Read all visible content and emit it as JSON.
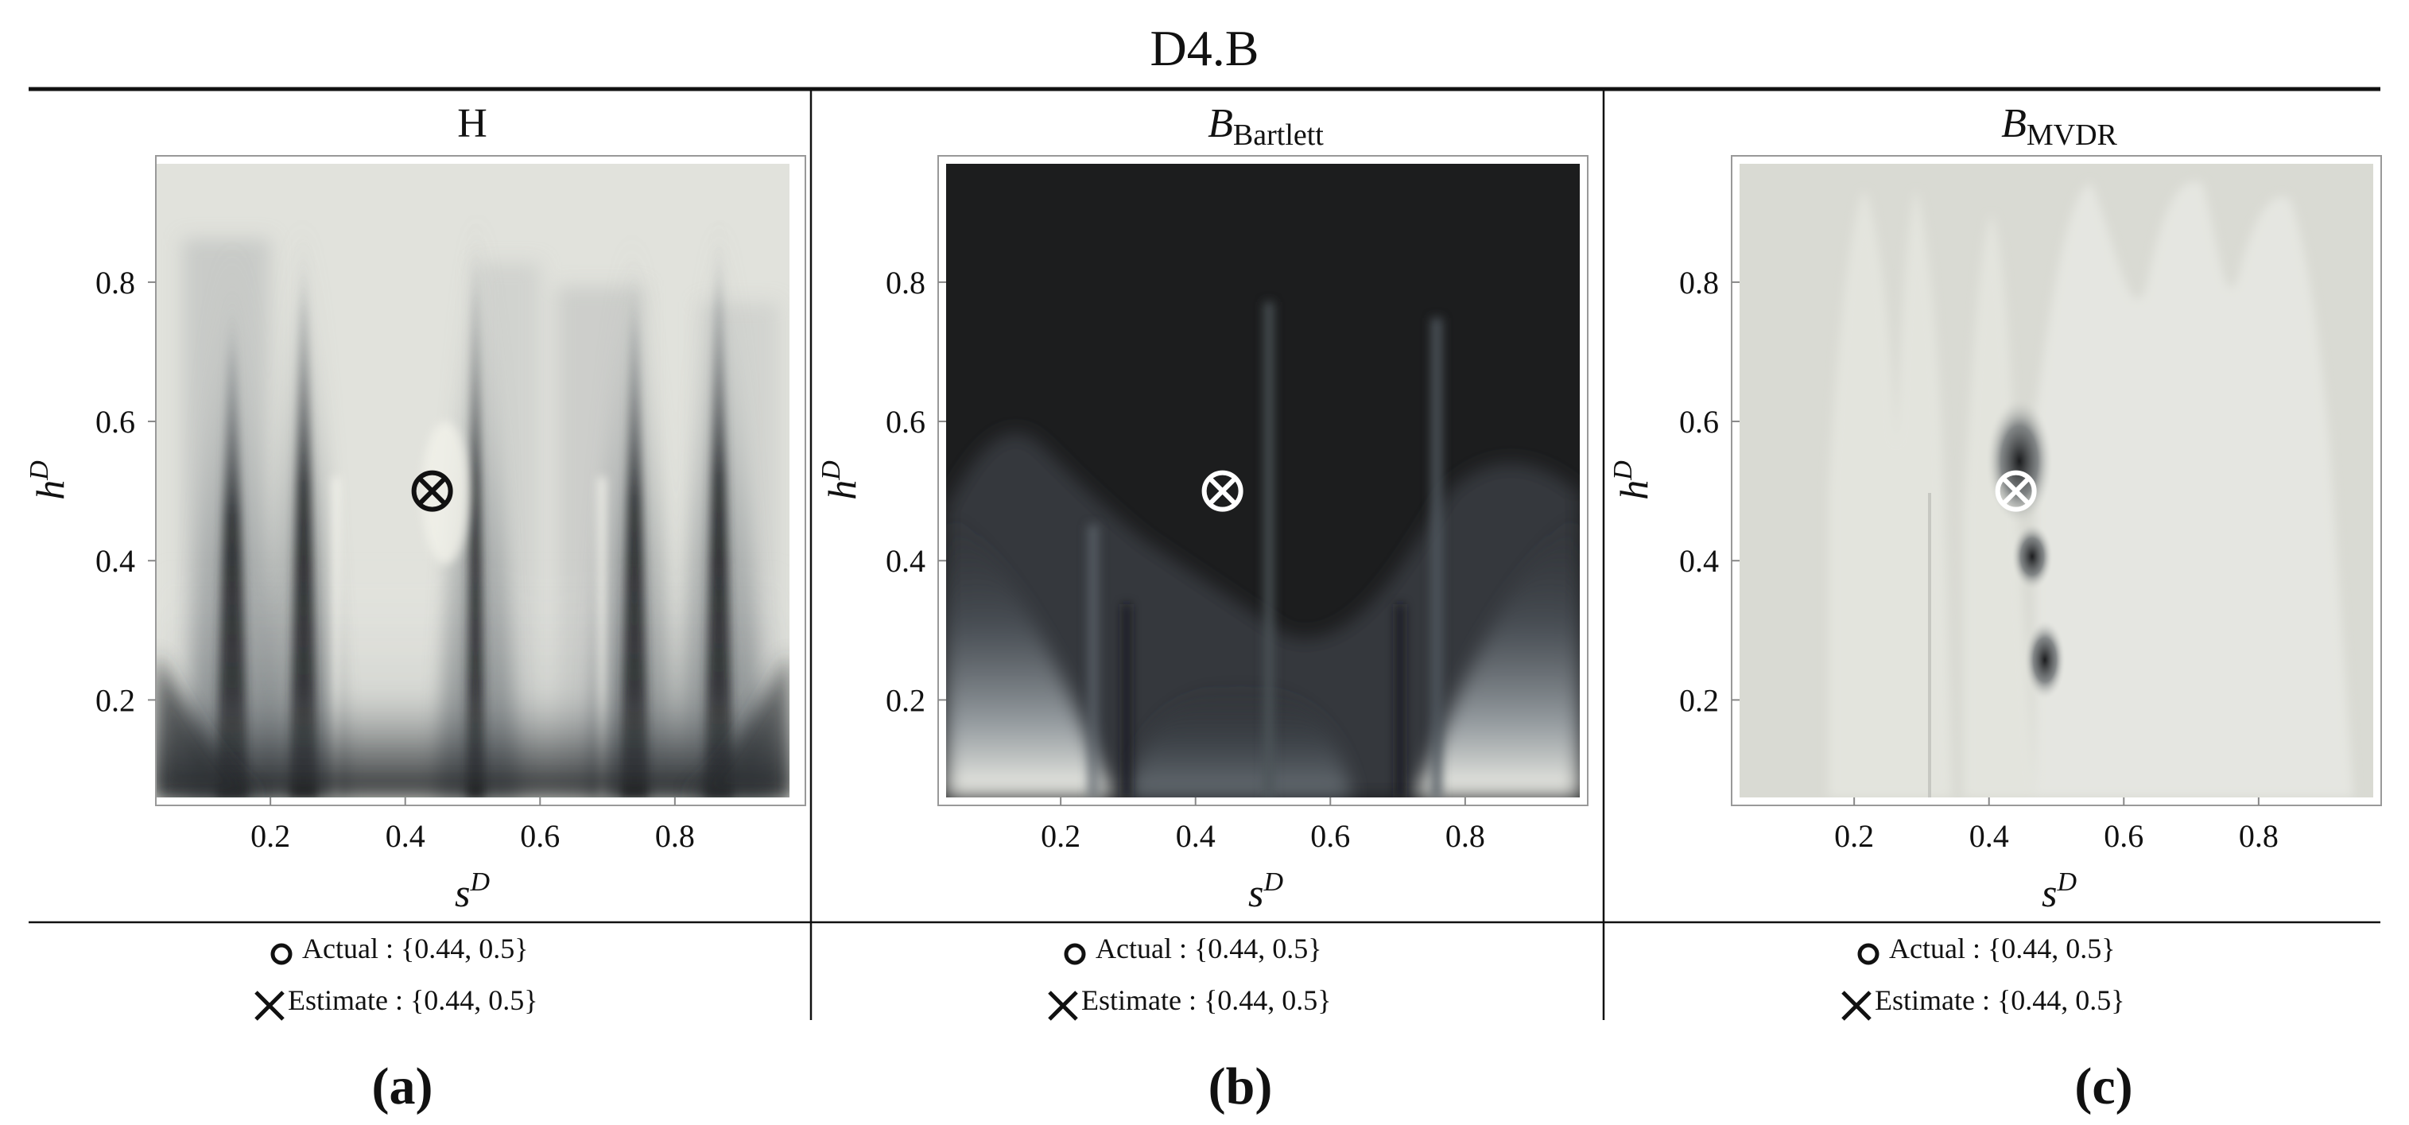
{
  "figure": {
    "title": "D4.B",
    "panel_letters": [
      "(a)",
      "(b)",
      "(c)"
    ]
  },
  "colors": {
    "light": "#e2e3dd",
    "dark": "#1c1d1e",
    "mid": "#8c9296",
    "line": "#111111",
    "marker_dark": "#111111",
    "marker_light": "#ffffff"
  },
  "chart_data": [
    {
      "type": "heatmap",
      "title_main": "H",
      "title_sub": "",
      "xlabel_main": "s",
      "xlabel_sup": "D",
      "ylabel_main": "h",
      "ylabel_sup": "D",
      "xlim": [
        0.03,
        0.97
      ],
      "ylim": [
        0.06,
        0.97
      ],
      "xticks": [
        0.2,
        0.4,
        0.6,
        0.8
      ],
      "yticks": [
        0.2,
        0.4,
        0.6,
        0.8
      ],
      "xtick_labels": [
        "0.2",
        "0.4",
        "0.6",
        "0.8"
      ],
      "ytick_labels": [
        "0.2",
        "0.4",
        "0.6",
        "0.8"
      ],
      "background": "light",
      "dark_features_s": [
        0.12,
        0.25,
        0.5,
        0.73,
        0.85
      ],
      "actual": {
        "s": 0.44,
        "h": 0.5
      },
      "estimate": {
        "s": 0.44,
        "h": 0.5
      },
      "marker_color": "marker_dark",
      "legend": {
        "actual_label": "Actual",
        "actual_value": "{0.44, 0.5}",
        "estimate_label": "Estimate",
        "estimate_value": "{0.44, 0.5}"
      }
    },
    {
      "type": "heatmap",
      "title_main": "B",
      "title_sub": "Bartlett",
      "xlabel_main": "s",
      "xlabel_sup": "D",
      "ylabel_main": "h",
      "ylabel_sup": "D",
      "xlim": [
        0.03,
        0.97
      ],
      "ylim": [
        0.06,
        0.97
      ],
      "xticks": [
        0.2,
        0.4,
        0.6,
        0.8
      ],
      "yticks": [
        0.2,
        0.4,
        0.6,
        0.8
      ],
      "xtick_labels": [
        "0.2",
        "0.4",
        "0.6",
        "0.8"
      ],
      "ytick_labels": [
        "0.2",
        "0.4",
        "0.6",
        "0.8"
      ],
      "background": "dark",
      "bright_features_s": [
        0.08,
        0.88
      ],
      "actual": {
        "s": 0.44,
        "h": 0.5
      },
      "estimate": {
        "s": 0.44,
        "h": 0.5
      },
      "marker_color": "marker_light",
      "legend": {
        "actual_label": "Actual",
        "actual_value": "{0.44, 0.5}",
        "estimate_label": "Estimate",
        "estimate_value": "{0.44, 0.5}"
      }
    },
    {
      "type": "heatmap",
      "title_main": "B",
      "title_sub": "MVDR",
      "xlabel_main": "s",
      "xlabel_sup": "D",
      "ylabel_main": "h",
      "ylabel_sup": "D",
      "xlim": [
        0.03,
        0.97
      ],
      "ylim": [
        0.06,
        0.97
      ],
      "xticks": [
        0.2,
        0.4,
        0.6,
        0.8
      ],
      "yticks": [
        0.2,
        0.4,
        0.6,
        0.8
      ],
      "xtick_labels": [
        "0.2",
        "0.4",
        "0.6",
        "0.8"
      ],
      "ytick_labels": [
        "0.2",
        "0.4",
        "0.6",
        "0.8"
      ],
      "background": "light",
      "dark_spots": [
        {
          "s": 0.44,
          "h": 0.55
        },
        {
          "s": 0.46,
          "h": 0.41
        },
        {
          "s": 0.48,
          "h": 0.25
        }
      ],
      "actual": {
        "s": 0.44,
        "h": 0.5
      },
      "estimate": {
        "s": 0.44,
        "h": 0.5
      },
      "marker_color": "marker_light",
      "legend": {
        "actual_label": "Actual",
        "actual_value": "{0.44, 0.5}",
        "estimate_label": "Estimate",
        "estimate_value": "{0.44, 0.5}"
      }
    }
  ]
}
